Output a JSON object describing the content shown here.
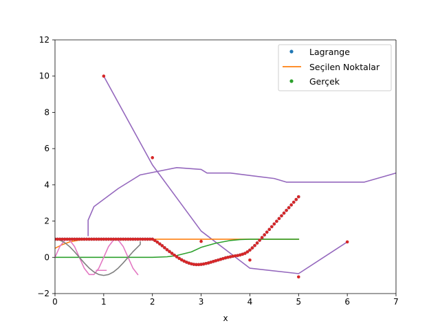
{
  "chart_data": {
    "type": "line",
    "title": "",
    "xlabel": "x",
    "ylabel": "",
    "xlim": [
      0,
      7
    ],
    "ylim": [
      -2,
      12
    ],
    "grid": false,
    "xticks": [
      0,
      1,
      2,
      3,
      4,
      5,
      6,
      7
    ],
    "yticks": [
      -2,
      0,
      2,
      4,
      6,
      8,
      10,
      12
    ],
    "legend_position": "top-right",
    "legend": [
      {
        "label": "Lagrange",
        "marker": "dot",
        "color": "#1f77b4"
      },
      {
        "label": "Seçilen Noktalar",
        "marker": "line",
        "color": "#ff7f0e"
      },
      {
        "label": "Gerçek",
        "marker": "dot",
        "color": "#2ca02c"
      }
    ],
    "series": [
      {
        "name": "purple-line-a",
        "color": "#9467bd",
        "x": [
          0.68,
          0.68,
          0.8,
          1.3,
          1.75,
          2.5,
          3.0,
          3.12,
          3.6,
          4.5,
          4.75,
          6.35,
          7.0
        ],
        "y": [
          1.2,
          2.05,
          2.8,
          3.8,
          4.55,
          4.95,
          4.85,
          4.65,
          4.65,
          4.35,
          4.15,
          4.15,
          4.65
        ]
      },
      {
        "name": "purple-line-b",
        "color": "#9467bd",
        "x": [
          1.0,
          2.0,
          3.0,
          4.0,
          5.0,
          6.0
        ],
        "y": [
          10.0,
          5.1,
          1.45,
          -0.6,
          -0.9,
          0.85
        ]
      },
      {
        "name": "orange-line",
        "color": "#ff7f0e",
        "x": [
          0.0,
          0.15,
          0.3,
          0.5,
          0.7,
          1.0,
          2.0,
          3.0,
          4.0,
          5.0
        ],
        "y": [
          0.5,
          0.7,
          0.85,
          0.95,
          0.98,
          1.0,
          1.0,
          1.0,
          1.0,
          1.0
        ]
      },
      {
        "name": "green-line",
        "color": "#2ca02c",
        "x": [
          0.0,
          1.0,
          2.0,
          2.3,
          2.5,
          2.8,
          3.0,
          3.3,
          3.6,
          3.8,
          4.0,
          4.5,
          5.0
        ],
        "y": [
          0.0,
          0.0,
          0.0,
          0.03,
          0.1,
          0.3,
          0.55,
          0.78,
          0.93,
          0.98,
          1.0,
          1.0,
          1.0
        ]
      },
      {
        "name": "pink-line",
        "color": "#e377c2",
        "x": [
          0.0,
          0.1,
          0.2,
          0.3,
          0.4,
          0.5,
          0.6,
          0.7,
          0.8,
          0.9,
          1.0,
          1.1,
          1.2,
          1.3,
          1.4,
          1.5,
          1.6,
          1.7
        ],
        "y": [
          0.0,
          0.6,
          0.95,
          0.95,
          0.6,
          0.0,
          -0.6,
          -0.95,
          -0.95,
          -0.6,
          0.0,
          0.6,
          0.95,
          0.95,
          0.6,
          0.0,
          -0.6,
          -0.95
        ]
      },
      {
        "name": "gray-line",
        "color": "#7f7f7f",
        "x": [
          0.0,
          0.1,
          0.2,
          0.3,
          0.4,
          0.5,
          0.6,
          0.7,
          0.8,
          0.9,
          1.0,
          1.1,
          1.2,
          1.3,
          1.4,
          1.5,
          1.6,
          1.75,
          1.75
        ],
        "y": [
          1.0,
          0.95,
          0.81,
          0.59,
          0.31,
          0.0,
          -0.31,
          -0.59,
          -0.81,
          -0.95,
          -1.0,
          -0.95,
          -0.81,
          -0.59,
          -0.31,
          0.0,
          0.31,
          0.71,
          0.85
        ]
      },
      {
        "name": "pink-fragment",
        "color": "#e377c2",
        "x": [
          0.85,
          1.05
        ],
        "y": [
          -0.72,
          -0.72
        ]
      }
    ],
    "scatter": [
      {
        "name": "Lagrange",
        "color": "#1f77b4",
        "x": [
          0.0,
          0.05,
          0.1,
          0.15,
          0.2,
          0.25,
          0.3,
          0.35,
          0.4,
          0.45,
          0.5,
          0.55,
          0.6,
          0.65,
          0.7,
          0.75,
          0.8,
          0.85,
          0.9,
          0.95,
          1.0,
          1.05,
          1.1,
          1.15,
          1.2,
          1.25,
          1.3,
          1.35,
          1.4,
          1.45,
          1.5,
          1.55,
          1.6,
          1.65,
          1.7,
          1.75,
          1.8,
          1.85,
          1.9,
          1.95,
          2.0,
          2.05,
          2.1,
          2.15,
          2.2,
          2.25,
          2.3,
          2.35,
          2.4,
          2.45,
          2.5,
          2.55,
          2.6,
          2.65,
          2.7,
          2.75,
          2.8,
          2.85,
          2.9,
          2.95,
          3.0,
          3.05,
          3.1,
          3.15,
          3.2,
          3.25,
          3.3,
          3.35,
          3.4,
          3.45,
          3.5,
          3.55,
          3.6,
          3.65,
          3.7,
          3.75,
          3.8,
          3.85,
          3.9,
          3.95,
          4.0,
          4.05,
          4.1,
          4.15,
          4.2,
          4.25,
          4.3,
          4.35,
          4.4,
          4.45,
          4.5,
          4.55,
          4.6,
          4.65,
          4.7,
          4.75,
          4.8,
          4.85,
          4.9,
          4.95,
          5.0
        ],
        "y": [
          1.0,
          1.0,
          1.0,
          1.0,
          1.0,
          1.0,
          1.0,
          1.0,
          1.0,
          1.0,
          1.0,
          1.0,
          1.0,
          1.0,
          1.0,
          1.0,
          1.0,
          1.0,
          1.0,
          1.0,
          1.0,
          1.0,
          1.0,
          1.0,
          1.0,
          1.0,
          1.0,
          1.0,
          1.0,
          1.0,
          1.0,
          1.0,
          1.0,
          1.0,
          1.0,
          1.0,
          1.0,
          1.0,
          1.0,
          1.0,
          1.0,
          0.93,
          0.84,
          0.74,
          0.64,
          0.53,
          0.42,
          0.32,
          0.22,
          0.12,
          0.03,
          -0.06,
          -0.14,
          -0.21,
          -0.27,
          -0.32,
          -0.36,
          -0.39,
          -0.4,
          -0.4,
          -0.39,
          -0.37,
          -0.34,
          -0.31,
          -0.27,
          -0.23,
          -0.19,
          -0.15,
          -0.11,
          -0.07,
          -0.03,
          0.0,
          0.03,
          0.06,
          0.08,
          0.1,
          0.13,
          0.17,
          0.22,
          0.3,
          0.4,
          0.52,
          0.65,
          0.79,
          0.94,
          1.09,
          1.24,
          1.39,
          1.54,
          1.69,
          1.84,
          1.99,
          2.14,
          2.29,
          2.44,
          2.59,
          2.74,
          2.89,
          3.04,
          3.19,
          3.34
        ]
      },
      {
        "name": "red-points",
        "color": "#d62728",
        "x": [
          0.0,
          0.05,
          0.1,
          0.15,
          0.2,
          0.25,
          0.3,
          0.35,
          0.4,
          0.45,
          0.5,
          0.55,
          0.6,
          0.65,
          0.7,
          0.75,
          0.8,
          0.85,
          0.9,
          0.95,
          1.0,
          1.05,
          1.1,
          1.15,
          1.2,
          1.25,
          1.3,
          1.35,
          1.4,
          1.45,
          1.5,
          1.55,
          1.6,
          1.65,
          1.7,
          1.75,
          1.8,
          1.85,
          1.9,
          1.95,
          2.0,
          2.05,
          2.1,
          2.15,
          2.2,
          2.25,
          2.3,
          2.35,
          2.4,
          2.45,
          2.5,
          2.55,
          2.6,
          2.65,
          2.7,
          2.75,
          2.8,
          2.85,
          2.9,
          2.95,
          3.0,
          3.05,
          3.1,
          3.15,
          3.2,
          3.25,
          3.3,
          3.35,
          3.4,
          3.45,
          3.5,
          3.55,
          3.6,
          3.65,
          3.7,
          3.75,
          3.8,
          3.85,
          3.9,
          3.95,
          4.0,
          4.05,
          4.1,
          4.15,
          4.2,
          4.25,
          4.3,
          4.35,
          4.4,
          4.45,
          4.5,
          4.55,
          4.6,
          4.65,
          4.7,
          4.75,
          4.8,
          4.85,
          4.9,
          4.95,
          5.0,
          1.0,
          2.0,
          3.0,
          4.0,
          5.0,
          6.0
        ],
        "y": [
          1.0,
          1.0,
          1.0,
          1.0,
          1.0,
          1.0,
          1.0,
          1.0,
          1.0,
          1.0,
          1.0,
          1.0,
          1.0,
          1.0,
          1.0,
          1.0,
          1.0,
          1.0,
          1.0,
          1.0,
          1.0,
          1.0,
          1.0,
          1.0,
          1.0,
          1.0,
          1.0,
          1.0,
          1.0,
          1.0,
          1.0,
          1.0,
          1.0,
          1.0,
          1.0,
          1.0,
          1.0,
          1.0,
          1.0,
          1.0,
          1.0,
          0.93,
          0.84,
          0.74,
          0.64,
          0.53,
          0.42,
          0.32,
          0.22,
          0.12,
          0.03,
          -0.06,
          -0.14,
          -0.21,
          -0.27,
          -0.32,
          -0.36,
          -0.39,
          -0.4,
          -0.4,
          -0.39,
          -0.37,
          -0.34,
          -0.31,
          -0.27,
          -0.23,
          -0.19,
          -0.15,
          -0.11,
          -0.07,
          -0.03,
          0.0,
          0.03,
          0.06,
          0.08,
          0.1,
          0.13,
          0.17,
          0.22,
          0.3,
          0.4,
          0.52,
          0.65,
          0.79,
          0.94,
          1.09,
          1.24,
          1.39,
          1.54,
          1.69,
          1.84,
          1.99,
          2.14,
          2.29,
          2.44,
          2.59,
          2.74,
          2.89,
          3.04,
          3.19,
          3.34,
          10.0,
          5.5,
          0.88,
          -0.15,
          -1.08,
          0.85
        ]
      }
    ]
  }
}
